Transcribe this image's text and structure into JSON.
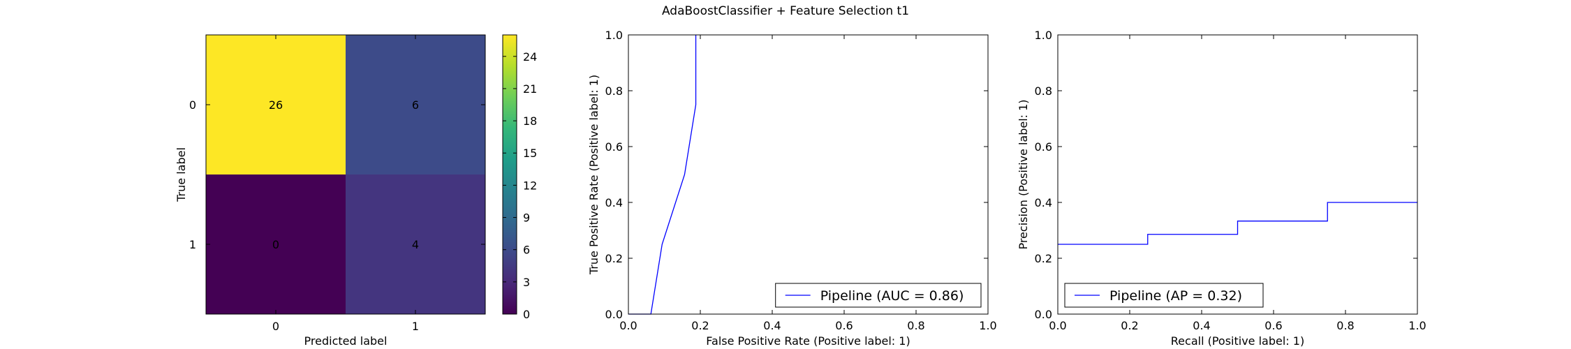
{
  "figure": {
    "title": "AdaBoostClassifier + Feature Selection t1"
  },
  "chart_data": [
    {
      "type": "heatmap",
      "name": "confusion_matrix",
      "xlabel": "Predicted label",
      "ylabel": "True label",
      "x_categories": [
        "0",
        "1"
      ],
      "y_categories": [
        "0",
        "1"
      ],
      "values": [
        [
          26,
          6
        ],
        [
          0,
          4
        ]
      ],
      "colormap": "viridis",
      "colorbar": {
        "range": [
          0,
          26
        ],
        "ticks": [
          0,
          3,
          6,
          9,
          12,
          15,
          18,
          21,
          24
        ]
      },
      "colors": {
        "text_on_bright": "#440154",
        "text_on_dark": "#fde725"
      }
    },
    {
      "type": "line",
      "name": "roc_curve",
      "xlabel": "False Positive Rate (Positive label: 1)",
      "ylabel": "True Positive Rate (Positive label: 1)",
      "xlim": [
        0,
        1
      ],
      "ylim": [
        0,
        1
      ],
      "xticks": [
        "0.0",
        "0.2",
        "0.4",
        "0.6",
        "0.8",
        "1.0"
      ],
      "yticks": [
        "0.0",
        "0.2",
        "0.4",
        "0.6",
        "0.8",
        "1.0"
      ],
      "legend_position": "lower-right",
      "series": [
        {
          "name": "Pipeline (AUC = 0.86)",
          "color": "#0000ff",
          "x": [
            0.0,
            0.0625,
            0.09375,
            0.15625,
            0.1875,
            0.1875
          ],
          "y": [
            0.0,
            0.0,
            0.25,
            0.5,
            0.75,
            1.0
          ]
        }
      ]
    },
    {
      "type": "line",
      "name": "precision_recall_curve",
      "xlabel": "Recall (Positive label: 1)",
      "ylabel": "Precision (Positive label: 1)",
      "xlim": [
        0,
        1
      ],
      "ylim": [
        0,
        1
      ],
      "xticks": [
        "0.0",
        "0.2",
        "0.4",
        "0.6",
        "0.8",
        "1.0"
      ],
      "yticks": [
        "0.0",
        "0.2",
        "0.4",
        "0.6",
        "0.8",
        "1.0"
      ],
      "legend_position": "lower-left",
      "series": [
        {
          "name": "Pipeline (AP = 0.32)",
          "color": "#0000ff",
          "step": true,
          "x": [
            0.0,
            0.25,
            0.5,
            0.75,
            1.0
          ],
          "y": [
            0.25,
            0.2857,
            0.3333,
            0.4,
            0.4
          ]
        }
      ]
    }
  ]
}
